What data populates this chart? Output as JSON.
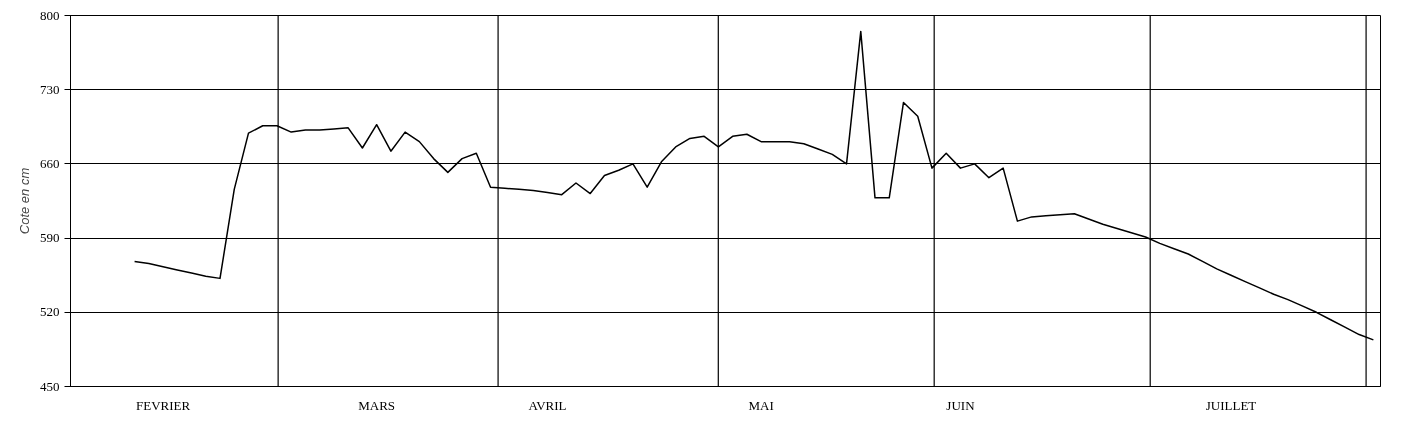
{
  "chart_data": {
    "type": "line",
    "ylabel": "Cote en cm",
    "categories": [
      null,
      null,
      null,
      null,
      null,
      null,
      "FEVRIER",
      null,
      null,
      null,
      null,
      null,
      null,
      null,
      null,
      null,
      null,
      null,
      null,
      null,
      null,
      "MARS",
      null,
      null,
      null,
      null,
      null,
      null,
      null,
      null,
      null,
      null,
      null,
      "AVRIL",
      null,
      null,
      null,
      null,
      null,
      null,
      null,
      null,
      null,
      null,
      null,
      null,
      null,
      null,
      "MAI",
      null,
      null,
      null,
      null,
      null,
      null,
      null,
      null,
      null,
      null,
      null,
      null,
      null,
      "JUIN",
      null,
      null,
      null,
      null,
      null,
      null,
      null,
      null,
      null,
      null,
      null,
      null,
      null,
      null,
      null,
      null,
      null,
      null,
      "JUILLET",
      null,
      null,
      null,
      null,
      null,
      null,
      null,
      null,
      null,
      null
    ],
    "ylim": [
      450,
      800
    ],
    "yticks": [
      450,
      520,
      590,
      660,
      730,
      800
    ],
    "grid": "y",
    "marker": "none",
    "line_style": "solid",
    "series": [
      {
        "color": "#000000",
        "values": [
          null,
          null,
          null,
          null,
          568,
          566,
          563,
          560,
          557,
          554,
          552,
          636,
          689,
          696,
          696,
          690,
          692,
          692,
          693,
          694,
          675,
          697,
          672,
          690,
          681,
          665,
          652,
          665,
          670,
          638,
          637,
          636,
          635,
          633,
          631,
          642,
          632,
          649,
          654,
          660,
          638,
          662,
          676,
          684,
          686,
          676,
          686,
          688,
          681,
          681,
          681,
          679,
          674,
          669,
          660,
          785,
          628,
          628,
          718,
          705,
          656,
          670,
          656,
          660,
          647,
          656,
          606,
          610,
          611,
          612,
          613,
          608,
          603,
          599,
          595,
          591,
          585,
          580,
          575,
          568,
          561,
          555,
          549,
          543,
          537,
          532,
          526,
          520,
          513,
          506,
          499,
          494
        ]
      }
    ]
  }
}
